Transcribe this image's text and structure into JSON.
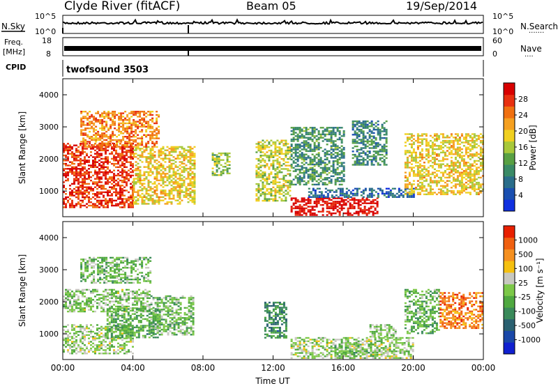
{
  "header": {
    "title": "Clyde River (fitACF)",
    "beam": "Beam 05",
    "date": "19/Sep/2014"
  },
  "nsky_panel": {
    "left_label": "N.Sky",
    "right_label": "N.Search",
    "right_dots": "·······",
    "ticks_left": [
      "10^5",
      "10^0"
    ],
    "ticks_right": [
      "10^5",
      "10^0"
    ]
  },
  "freq_panel": {
    "left_label": "Freq.",
    "left_unit": "[MHz]",
    "right_label": "Nave",
    "right_dots": "····",
    "ticks_left": [
      "18",
      "8"
    ],
    "ticks_right": [
      "60",
      "0"
    ]
  },
  "cpid_panel": {
    "label": "CPID",
    "value": "twofsound 3503"
  },
  "colors": {
    "power_scale": [
      "#1030e0",
      "#1a4fb0",
      "#2a6d8a",
      "#3a8a66",
      "#58a043",
      "#a8c83a",
      "#f0d020",
      "#f5a020",
      "#f07010",
      "#e83010",
      "#d80000"
    ],
    "velocity_scale": [
      "#1020d0",
      "#1a48a8",
      "#2a6070",
      "#3a8a5a",
      "#4fa840",
      "#7cc848",
      "#c8c8c0",
      "#f5c010",
      "#f59020",
      "#f06010",
      "#e82000"
    ]
  },
  "chart_data": [
    {
      "type": "heatmap",
      "name_panel": "power",
      "xlabel": "",
      "ylabel": "Slant Range [km]",
      "xlim": [
        0,
        24
      ],
      "ylim": [
        200,
        4500
      ],
      "yticks": [
        "1000",
        "2000",
        "3000",
        "4000"
      ],
      "xticks": [
        "00:00",
        "04:00",
        "08:00",
        "12:00",
        "16:00",
        "20:00",
        "00:00"
      ],
      "colorbar": {
        "label": "Power [dB]",
        "ticks": [
          "28",
          "24",
          "20",
          "16",
          "12",
          "8",
          "4"
        ],
        "range": [
          0,
          30
        ]
      },
      "regions": [
        {
          "t0": 0,
          "t1": 4,
          "r0": 500,
          "r1": 2500,
          "value": 26
        },
        {
          "t0": 4,
          "t1": 7.5,
          "r0": 600,
          "r1": 2400,
          "value": 18
        },
        {
          "t0": 1,
          "t1": 5.5,
          "r0": 2400,
          "r1": 3500,
          "value": 22
        },
        {
          "t0": 8.5,
          "t1": 9.5,
          "r0": 1500,
          "r1": 2200,
          "value": 14
        },
        {
          "t0": 11,
          "t1": 13,
          "r0": 700,
          "r1": 2600,
          "value": 16
        },
        {
          "t0": 13,
          "t1": 16,
          "r0": 1200,
          "r1": 3000,
          "value": 10
        },
        {
          "t0": 13,
          "t1": 18,
          "r0": 250,
          "r1": 800,
          "value": 29
        },
        {
          "t0": 14,
          "t1": 20,
          "r0": 800,
          "r1": 1100,
          "value": 6
        },
        {
          "t0": 16.5,
          "t1": 18.5,
          "r0": 1800,
          "r1": 3200,
          "value": 9
        },
        {
          "t0": 19.5,
          "t1": 24,
          "r0": 900,
          "r1": 2800,
          "value": 18
        }
      ]
    },
    {
      "type": "heatmap",
      "name_panel": "velocity",
      "xlabel": "Time UT",
      "ylabel": "Slant Range [km]",
      "xlim": [
        0,
        24
      ],
      "ylim": [
        200,
        4500
      ],
      "yticks": [
        "1000",
        "2000",
        "3000",
        "4000"
      ],
      "xticks": [
        "00:00",
        "04:00",
        "08:00",
        "12:00",
        "16:00",
        "20:00",
        "00:00"
      ],
      "colorbar": {
        "label": "Velocity [m s⁻¹]",
        "ticks": [
          "1000",
          "500",
          "100",
          "25",
          "-25",
          "-100",
          "-500",
          "-1000"
        ],
        "range": [
          -1100,
          1100
        ]
      },
      "regions": [
        {
          "t0": 0,
          "t1": 4,
          "r0": 400,
          "r1": 1300,
          "value": 50
        },
        {
          "t0": 0,
          "t1": 5,
          "r0": 1700,
          "r1": 2400,
          "value": 0
        },
        {
          "t0": 2.5,
          "t1": 5.5,
          "r0": 900,
          "r1": 1800,
          "value": -200
        },
        {
          "t0": 5,
          "t1": 7.5,
          "r0": 1000,
          "r1": 2200,
          "value": -100
        },
        {
          "t0": 1,
          "t1": 5,
          "r0": 2600,
          "r1": 3400,
          "value": -100
        },
        {
          "t0": 11.5,
          "t1": 12.7,
          "r0": 900,
          "r1": 2000,
          "value": -400
        },
        {
          "t0": 13,
          "t1": 20,
          "r0": 250,
          "r1": 900,
          "value": 60
        },
        {
          "t0": 15.5,
          "t1": 18,
          "r0": 300,
          "r1": 700,
          "value": -80
        },
        {
          "t0": 17.5,
          "t1": 19,
          "r0": 900,
          "r1": 1300,
          "value": 0
        },
        {
          "t0": 19.5,
          "t1": 21.5,
          "r0": 1000,
          "r1": 2400,
          "value": -150
        },
        {
          "t0": 21.5,
          "t1": 24,
          "r0": 1200,
          "r1": 2300,
          "value": 700
        }
      ]
    }
  ]
}
